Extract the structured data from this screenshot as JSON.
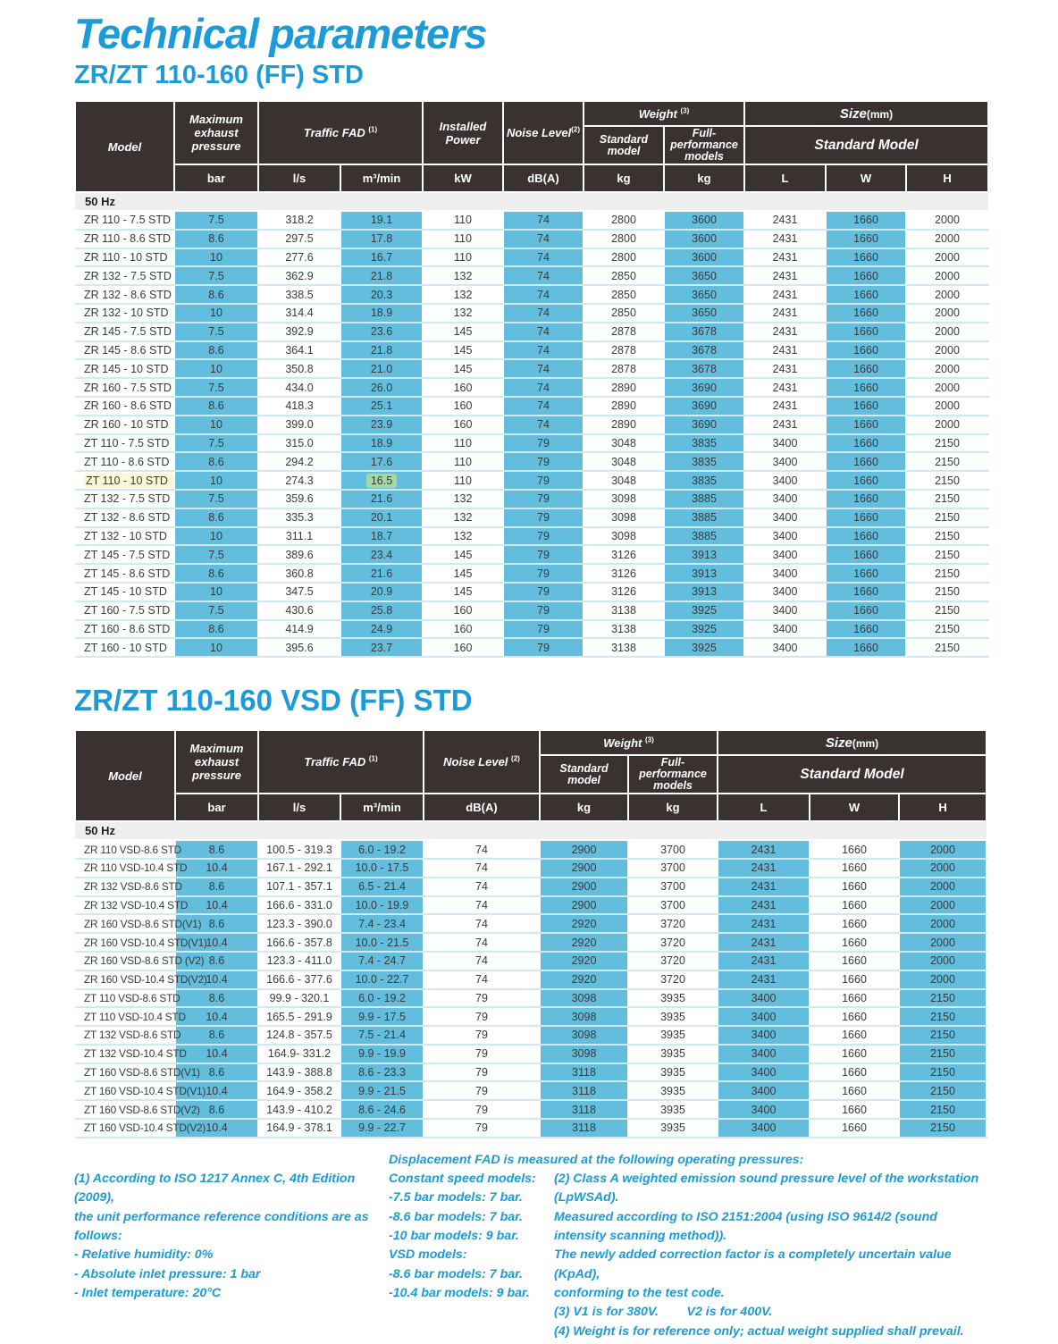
{
  "page": {
    "title": "Technical parameters",
    "colors": {
      "accent": "#1b9bd7",
      "header_dark": "#3a3231",
      "cell_blue": "#63bedd",
      "row_line": "#cfe9f5",
      "group_gray": "#efeff0",
      "highlight_yellow": "#fcf8d6",
      "highlight_green": "#a6d7a9",
      "data_text": "#3a3a3a"
    }
  },
  "table1": {
    "title": "ZR/ZT 110-160 (FF) STD",
    "header": {
      "model": "Model",
      "max_pressure": "Maximum exhaust pressure",
      "traffic_fad": "Traffic FAD",
      "traffic_fad_sup": "(1)",
      "installed_power": "Installed Power",
      "noise_level": "Noise Level",
      "noise_level_sup": "(2)",
      "weight": "Weight",
      "weight_sup": "(3)",
      "weight_std": "Standard model",
      "weight_fp": "Full-performance models",
      "size": "Size",
      "size_unit": "(mm)",
      "size_model": "Standard Model",
      "units": [
        "bar",
        "l/s",
        "m³/min",
        "kW",
        "dB(A)",
        "kg",
        "kg",
        "L",
        "W",
        "H"
      ]
    },
    "group_label": "50 Hz",
    "rows": [
      {
        "model": "ZR 110 - 7.5 STD",
        "values": [
          "7.5",
          "318.2",
          "19.1",
          "110",
          "74",
          "2800",
          "3600",
          "2431",
          "1660",
          "2000"
        ]
      },
      {
        "model": "ZR 110 - 8.6 STD",
        "values": [
          "8.6",
          "297.5",
          "17.8",
          "110",
          "74",
          "2800",
          "3600",
          "2431",
          "1660",
          "2000"
        ]
      },
      {
        "model": "ZR 110 - 10 STD",
        "values": [
          "10",
          "277.6",
          "16.7",
          "110",
          "74",
          "2800",
          "3600",
          "2431",
          "1660",
          "2000"
        ]
      },
      {
        "model": "ZR 132 - 7.5 STD",
        "values": [
          "7.5",
          "362.9",
          "21.8",
          "132",
          "74",
          "2850",
          "3650",
          "2431",
          "1660",
          "2000"
        ]
      },
      {
        "model": "ZR 132 - 8.6 STD",
        "values": [
          "8.6",
          "338.5",
          "20.3",
          "132",
          "74",
          "2850",
          "3650",
          "2431",
          "1660",
          "2000"
        ]
      },
      {
        "model": "ZR 132 - 10 STD",
        "values": [
          "10",
          "314.4",
          "18.9",
          "132",
          "74",
          "2850",
          "3650",
          "2431",
          "1660",
          "2000"
        ]
      },
      {
        "model": "ZR 145 - 7.5 STD",
        "values": [
          "7.5",
          "392.9",
          "23.6",
          "145",
          "74",
          "2878",
          "3678",
          "2431",
          "1660",
          "2000"
        ]
      },
      {
        "model": "ZR 145 - 8.6 STD",
        "values": [
          "8.6",
          "364.1",
          "21.8",
          "145",
          "74",
          "2878",
          "3678",
          "2431",
          "1660",
          "2000"
        ]
      },
      {
        "model": "ZR 145 - 10 STD",
        "values": [
          "10",
          "350.8",
          "21.0",
          "145",
          "74",
          "2878",
          "3678",
          "2431",
          "1660",
          "2000"
        ]
      },
      {
        "model": "ZR 160 - 7.5 STD",
        "values": [
          "7.5",
          "434.0",
          "26.0",
          "160",
          "74",
          "2890",
          "3690",
          "2431",
          "1660",
          "2000"
        ]
      },
      {
        "model": "ZR 160 - 8.6 STD",
        "values": [
          "8.6",
          "418.3",
          "25.1",
          "160",
          "74",
          "2890",
          "3690",
          "2431",
          "1660",
          "2000"
        ]
      },
      {
        "model": "ZR 160 - 10 STD",
        "values": [
          "10",
          "399.0",
          "23.9",
          "160",
          "74",
          "2890",
          "3690",
          "2431",
          "1660",
          "2000"
        ]
      },
      {
        "model": "ZT 110 - 7.5 STD",
        "values": [
          "7.5",
          "315.0",
          "18.9",
          "110",
          "79",
          "3048",
          "3835",
          "3400",
          "1660",
          "2150"
        ]
      },
      {
        "model": "ZT 110 - 8.6 STD",
        "values": [
          "8.6",
          "294.2",
          "17.6",
          "110",
          "79",
          "3048",
          "3835",
          "3400",
          "1660",
          "2150"
        ]
      },
      {
        "model": "ZT 110 - 10 STD",
        "hl_model": true,
        "hl_cells": [
          2
        ],
        "values": [
          "10",
          "274.3",
          "16.5",
          "110",
          "79",
          "3048",
          "3835",
          "3400",
          "1660",
          "2150"
        ]
      },
      {
        "model": "ZT 132 - 7.5 STD",
        "values": [
          "7.5",
          "359.6",
          "21.6",
          "132",
          "79",
          "3098",
          "3885",
          "3400",
          "1660",
          "2150"
        ]
      },
      {
        "model": "ZT 132 - 8.6 STD",
        "values": [
          "8.6",
          "335.3",
          "20.1",
          "132",
          "79",
          "3098",
          "3885",
          "3400",
          "1660",
          "2150"
        ]
      },
      {
        "model": "ZT 132 - 10 STD",
        "values": [
          "10",
          "311.1",
          "18.7",
          "132",
          "79",
          "3098",
          "3885",
          "3400",
          "1660",
          "2150"
        ]
      },
      {
        "model": "ZT 145 - 7.5 STD",
        "values": [
          "7.5",
          "389.6",
          "23.4",
          "145",
          "79",
          "3126",
          "3913",
          "3400",
          "1660",
          "2150"
        ]
      },
      {
        "model": "ZT 145 - 8.6 STD",
        "values": [
          "8.6",
          "360.8",
          "21.6",
          "145",
          "79",
          "3126",
          "3913",
          "3400",
          "1660",
          "2150"
        ]
      },
      {
        "model": "ZT 145 - 10 STD",
        "values": [
          "10",
          "347.5",
          "20.9",
          "145",
          "79",
          "3126",
          "3913",
          "3400",
          "1660",
          "2150"
        ]
      },
      {
        "model": "ZT 160 - 7.5 STD",
        "values": [
          "7.5",
          "430.6",
          "25.8",
          "160",
          "79",
          "3138",
          "3925",
          "3400",
          "1660",
          "2150"
        ]
      },
      {
        "model": "ZT 160 - 8.6 STD",
        "values": [
          "8.6",
          "414.9",
          "24.9",
          "160",
          "79",
          "3138",
          "3925",
          "3400",
          "1660",
          "2150"
        ]
      },
      {
        "model": "ZT 160 - 10 STD",
        "values": [
          "10",
          "395.6",
          "23.7",
          "160",
          "79",
          "3138",
          "3925",
          "3400",
          "1660",
          "2150"
        ]
      }
    ]
  },
  "table2": {
    "title": "ZR/ZT 110-160 VSD (FF) STD",
    "header": {
      "model": "Model",
      "max_pressure": "Maximum exhaust pressure",
      "traffic_fad": "Traffic FAD",
      "traffic_fad_sup": "(1)",
      "noise_level": "Noise Level",
      "noise_level_sup": "(2)",
      "weight": "Weight",
      "weight_sup": "(3)",
      "weight_std": "Standard model",
      "weight_fp": "Full-performance models",
      "size": "Size",
      "size_unit": "(mm)",
      "size_model": "Standard Model",
      "units": [
        "bar",
        "l/s",
        "m³/min",
        "dB(A)",
        "kg",
        "kg",
        "L",
        "W",
        "H"
      ]
    },
    "group_label": "50 Hz",
    "rows": [
      {
        "model": "ZR 110 VSD-8.6 STD",
        "values": [
          "8.6",
          "100.5 - 319.3",
          "6.0 - 19.2",
          "74",
          "2900",
          "3700",
          "2431",
          "1660",
          "2000"
        ]
      },
      {
        "model": "ZR 110 VSD-10.4 STD",
        "values": [
          "10.4",
          "167.1 - 292.1",
          "10.0 - 17.5",
          "74",
          "2900",
          "3700",
          "2431",
          "1660",
          "2000"
        ]
      },
      {
        "model": "ZR 132 VSD-8.6 STD",
        "values": [
          "8.6",
          "107.1 - 357.1",
          "6.5 - 21.4",
          "74",
          "2900",
          "3700",
          "2431",
          "1660",
          "2000"
        ]
      },
      {
        "model": "ZR 132 VSD-10.4 STD",
        "values": [
          "10.4",
          "166.6 - 331.0",
          "10.0 - 19.9",
          "74",
          "2900",
          "3700",
          "2431",
          "1660",
          "2000"
        ]
      },
      {
        "model": "ZR 160 VSD-8.6 STD(V1)",
        "values": [
          "8.6",
          "123.3 - 390.0",
          "7.4 - 23.4",
          "74",
          "2920",
          "3720",
          "2431",
          "1660",
          "2000"
        ]
      },
      {
        "model": "ZR 160 VSD-10.4 STD(V1)",
        "values": [
          "10.4",
          "166.6 - 357.8",
          "10.0 - 21.5",
          "74",
          "2920",
          "3720",
          "2431",
          "1660",
          "2000"
        ]
      },
      {
        "model": "ZR 160 VSD-8.6 STD (V2)",
        "values": [
          "8.6",
          "123.3 - 411.0",
          "7.4 - 24.7",
          "74",
          "2920",
          "3720",
          "2431",
          "1660",
          "2000"
        ]
      },
      {
        "model": "ZR 160 VSD-10.4 STD(V2)",
        "values": [
          "10.4",
          "166.6 - 377.6",
          "10.0 - 22.7",
          "74",
          "2920",
          "3720",
          "2431",
          "1660",
          "2000"
        ]
      },
      {
        "model": "ZT 110 VSD-8.6 STD",
        "values": [
          "8.6",
          "99.9 - 320.1",
          "6.0 - 19.2",
          "79",
          "3098",
          "3935",
          "3400",
          "1660",
          "2150"
        ]
      },
      {
        "model": "ZT 110 VSD-10.4 STD",
        "values": [
          "10.4",
          "165.5 - 291.9",
          "9.9 - 17.5",
          "79",
          "3098",
          "3935",
          "3400",
          "1660",
          "2150"
        ]
      },
      {
        "model": "ZT 132 VSD-8.6 STD",
        "values": [
          "8.6",
          "124.8 - 357.5",
          "7.5 - 21.4",
          "79",
          "3098",
          "3935",
          "3400",
          "1660",
          "2150"
        ]
      },
      {
        "model": "ZT 132 VSD-10.4 STD",
        "values": [
          "10.4",
          "164.9- 331.2",
          "9.9 - 19.9",
          "79",
          "3098",
          "3935",
          "3400",
          "1660",
          "2150"
        ]
      },
      {
        "model": "ZT 160 VSD-8.6 STD(V1)",
        "values": [
          "8.6",
          "143.9 - 388.8",
          "8.6 - 23.3",
          "79",
          "3118",
          "3935",
          "3400",
          "1660",
          "2150"
        ]
      },
      {
        "model": "ZT 160 VSD-10.4 STD(V1)",
        "values": [
          "10.4",
          "164.9 - 358.2",
          "9.9 - 21.5",
          "79",
          "3118",
          "3935",
          "3400",
          "1660",
          "2150"
        ]
      },
      {
        "model": "ZT 160 VSD-8.6 STD(V2)",
        "values": [
          "8.6",
          "143.9 - 410.2",
          "8.6 - 24.6",
          "79",
          "3118",
          "3935",
          "3400",
          "1660",
          "2150"
        ]
      },
      {
        "model": "ZT 160 VSD-10.4 STD(V2)",
        "values": [
          "10.4",
          "164.9 - 378.1",
          "9.9 - 22.7",
          "79",
          "3118",
          "3935",
          "3400",
          "1660",
          "2150"
        ]
      }
    ]
  },
  "footnotes": {
    "fad_header": "Displacement FAD is measured at the following operating pressures:",
    "note1_lines": [
      "(1) According to ISO 1217 Annex C, 4th Edition (2009),",
      "the unit performance reference conditions are as follows:",
      "- Relative humidity: 0%",
      "- Absolute inlet pressure: 1 bar",
      "- Inlet temperature: 20°C"
    ],
    "speed_lines": [
      "Constant speed models:",
      "-7.5 bar models: 7 bar.",
      "-8.6 bar models: 7 bar.",
      "-10 bar models: 9 bar.",
      "VSD models:",
      "-8.6 bar models: 7 bar.",
      "-10.4 bar models: 9 bar."
    ],
    "note2_lines": [
      "(2) Class A weighted emission sound pressure level of the workstation (LpWSAd).",
      "Measured according to ISO 2151:2004 (using ISO 9614/2 (sound",
      "intensity scanning method)).",
      "The newly added correction factor is a completely uncertain value (KpAd),",
      "conforming to the test code.",
      "(3) V1 is for 380V.        V2 is for 400V.",
      "(4) Weight is for reference only; actual weight supplied shall prevail."
    ]
  }
}
